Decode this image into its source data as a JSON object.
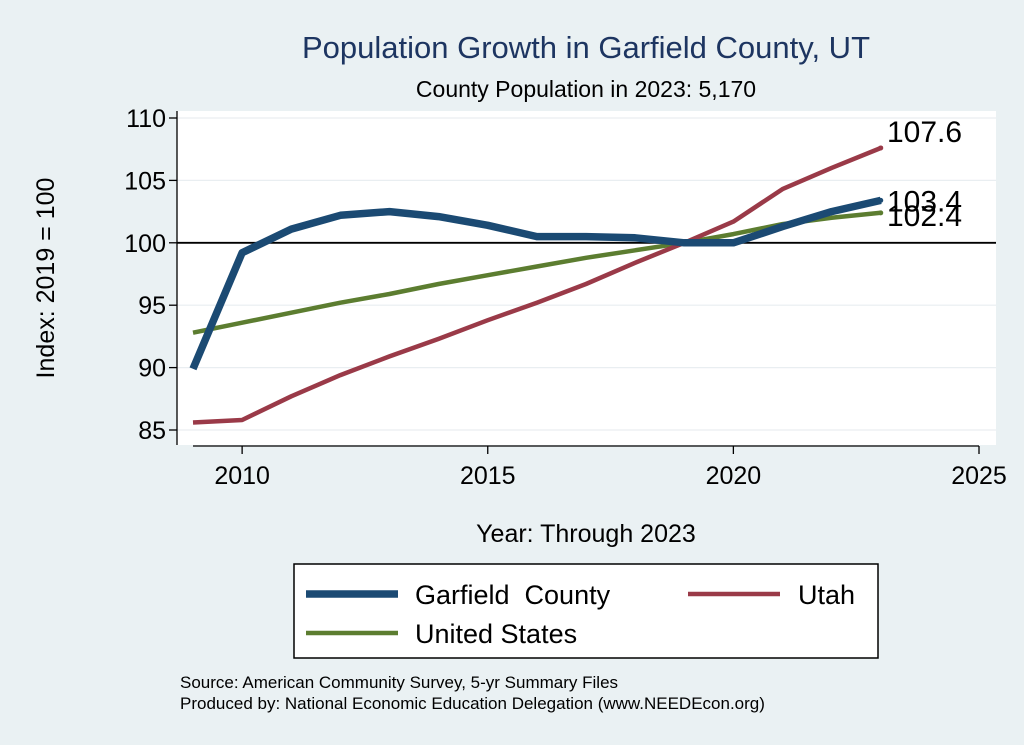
{
  "chart_data": {
    "type": "line",
    "title": "Population Growth in Garfield County, UT",
    "subtitle": "County Population in 2023: 5,170",
    "xlabel": "Year: Through 2023",
    "ylabel": "Index: 2019 = 100",
    "xlim": [
      2009,
      2025
    ],
    "ylim": [
      85,
      110
    ],
    "xticks": [
      2010,
      2015,
      2020,
      2025
    ],
    "yticks": [
      85,
      90,
      95,
      100,
      105,
      110
    ],
    "reference_line": 100,
    "grid": true,
    "legend_position": "bottom",
    "series": [
      {
        "name": "Garfield  County",
        "color": "#1b4a73",
        "x": [
          2009,
          2010,
          2011,
          2012,
          2013,
          2014,
          2015,
          2016,
          2017,
          2018,
          2019,
          2020,
          2021,
          2022,
          2023
        ],
        "values": [
          89.9,
          99.2,
          101.1,
          102.2,
          102.5,
          102.1,
          101.4,
          100.5,
          100.5,
          100.4,
          100.0,
          100.0,
          101.3,
          102.5,
          103.4
        ],
        "end_label": "103.4"
      },
      {
        "name": "Utah",
        "color": "#9a3a48",
        "x": [
          2009,
          2010,
          2011,
          2012,
          2013,
          2014,
          2015,
          2016,
          2017,
          2018,
          2019,
          2020,
          2021,
          2022,
          2023
        ],
        "values": [
          85.6,
          85.8,
          87.7,
          89.4,
          90.9,
          92.3,
          93.8,
          95.2,
          96.7,
          98.4,
          100.0,
          101.7,
          104.3,
          106.0,
          107.6
        ],
        "end_label": "107.6"
      },
      {
        "name": "United States",
        "color": "#5c7d30",
        "x": [
          2009,
          2010,
          2011,
          2012,
          2013,
          2014,
          2015,
          2016,
          2017,
          2018,
          2019,
          2020,
          2021,
          2022,
          2023
        ],
        "values": [
          92.8,
          93.6,
          94.4,
          95.2,
          95.9,
          96.7,
          97.4,
          98.1,
          98.8,
          99.4,
          100.0,
          100.7,
          101.5,
          102.0,
          102.4
        ],
        "end_label": "102.4"
      }
    ],
    "source_lines": [
      "Source: American Community Survey, 5-yr Summary Files",
      "Produced by: National Economic Education Delegation (www.NEEDEcon.org)"
    ]
  }
}
